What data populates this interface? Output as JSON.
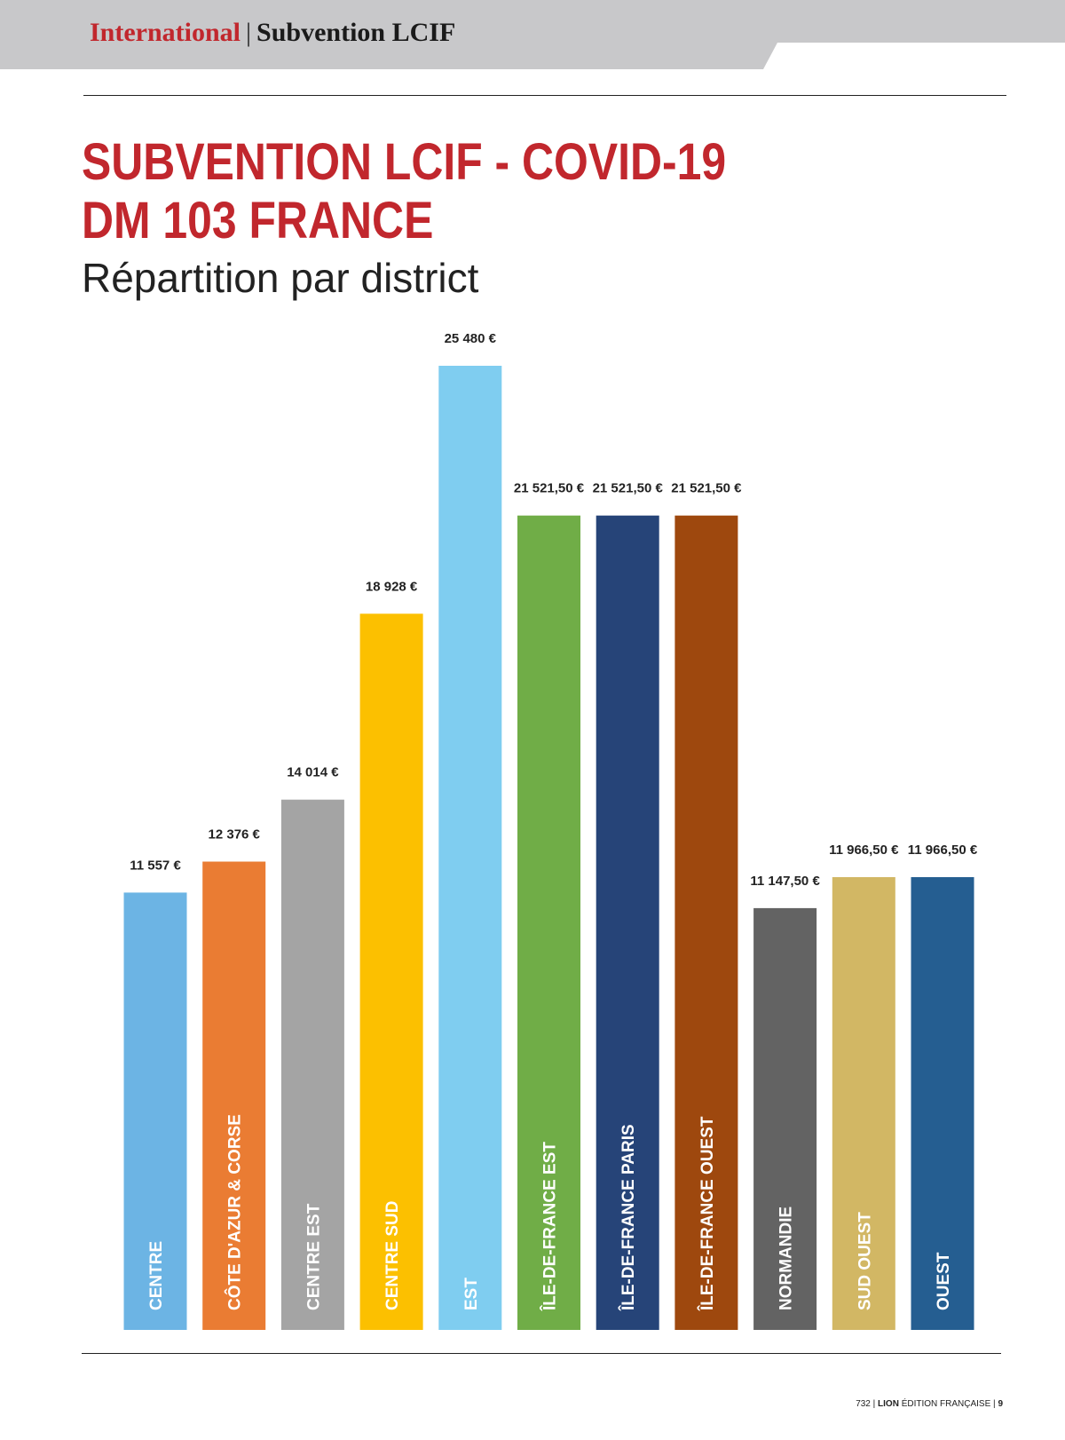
{
  "header": {
    "section": "International",
    "separator": "|",
    "topic": "Subvention LCIF"
  },
  "title_line1": "SUBVENTION LCIF - COVID-19",
  "title_line2": "DM 103 FRANCE",
  "subtitle": "Répartition par district",
  "chart_data": {
    "type": "bar",
    "title": "SUBVENTION LCIF - COVID-19 DM 103 FRANCE",
    "subtitle": "Répartition par district",
    "categories": [
      "CENTRE",
      "CÔTE D'AZUR & CORSE",
      "CENTRE EST",
      "CENTRE SUD",
      "EST",
      "ÎLE-DE-FRANCE EST",
      "ÎLE-DE-FRANCE PARIS",
      "ÎLE-DE-FRANCE OUEST",
      "NORMANDIE",
      "SUD OUEST",
      "OUEST"
    ],
    "values": [
      11557,
      12376,
      14014,
      18928,
      25480,
      21521.5,
      21521.5,
      21521.5,
      11147.5,
      11966.5,
      11966.5
    ],
    "value_labels": [
      "11 557 €",
      "12 376 €",
      "14 014 €",
      "18 928 €",
      "25 480 €",
      "21 521,50 €",
      "21 521,50 €",
      "21 521,50 €",
      "11 147,50 €",
      "11 966,50 €",
      "11 966,50 €"
    ],
    "colors": [
      "#6cb4e4",
      "#ea7c33",
      "#a4a4a4",
      "#fcc000",
      "#7fcdf0",
      "#70ad47",
      "#264478",
      "#9e480e",
      "#636363",
      "#d2b764",
      "#255e91"
    ],
    "xlabel": "",
    "ylabel": "",
    "ylim": [
      0,
      25480
    ],
    "grid": false,
    "legend": "none"
  },
  "footer": {
    "issue": "732",
    "brand": "LION",
    "edition": "ÉDITION FRANÇAISE",
    "page": "9"
  }
}
